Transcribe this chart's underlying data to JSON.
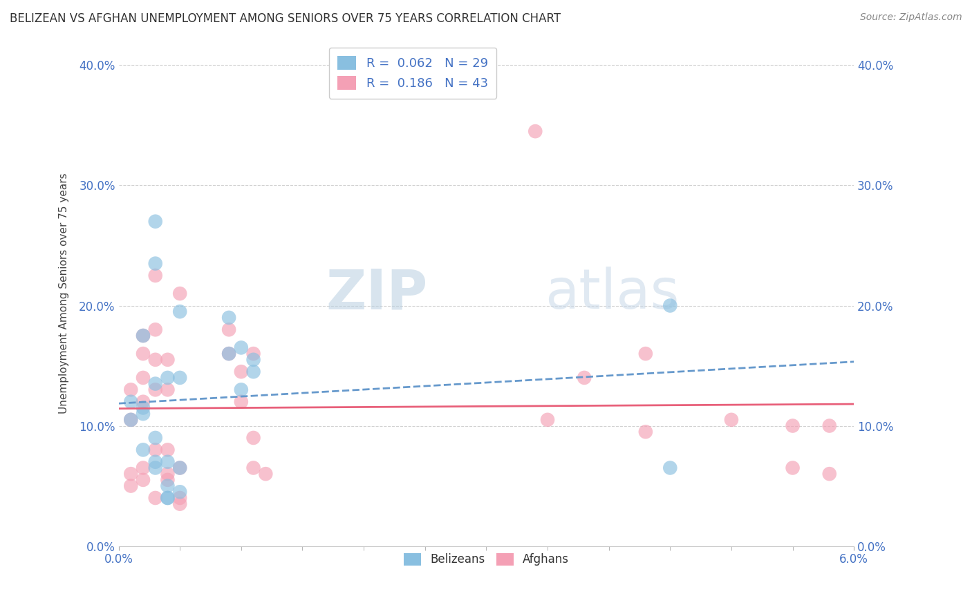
{
  "title": "BELIZEAN VS AFGHAN UNEMPLOYMENT AMONG SENIORS OVER 75 YEARS CORRELATION CHART",
  "source": "Source: ZipAtlas.com",
  "ylabel": "Unemployment Among Seniors over 75 years",
  "xlim": [
    0.0,
    0.06
  ],
  "ylim": [
    0.0,
    0.42
  ],
  "yticks": [
    0.0,
    0.1,
    0.2,
    0.3,
    0.4
  ],
  "xticks": [
    0.0,
    0.06
  ],
  "xtick_labels": [
    "0.0%",
    "6.0%"
  ],
  "ytick_labels": [
    "0.0%",
    "10.0%",
    "20.0%",
    "30.0%",
    "40.0%"
  ],
  "belizean_R": "0.062",
  "belizean_N": "29",
  "afghan_R": "0.186",
  "afghan_N": "43",
  "belizean_color": "#89bfe0",
  "afghan_color": "#f4a0b5",
  "belizean_line_color": "#6699cc",
  "afghan_line_color": "#e8607a",
  "axis_color": "#4472c4",
  "watermark_color": "#dce8f0",
  "belizean_x": [
    0.001,
    0.001,
    0.002,
    0.002,
    0.002,
    0.002,
    0.003,
    0.003,
    0.003,
    0.003,
    0.003,
    0.003,
    0.004,
    0.004,
    0.004,
    0.004,
    0.004,
    0.005,
    0.005,
    0.005,
    0.005,
    0.009,
    0.009,
    0.01,
    0.01,
    0.011,
    0.011,
    0.045,
    0.045
  ],
  "belizean_y": [
    0.105,
    0.12,
    0.115,
    0.175,
    0.11,
    0.08,
    0.235,
    0.27,
    0.135,
    0.07,
    0.09,
    0.065,
    0.14,
    0.07,
    0.04,
    0.05,
    0.04,
    0.195,
    0.14,
    0.045,
    0.065,
    0.16,
    0.19,
    0.165,
    0.13,
    0.145,
    0.155,
    0.2,
    0.065
  ],
  "afghan_x": [
    0.001,
    0.001,
    0.001,
    0.001,
    0.002,
    0.002,
    0.002,
    0.002,
    0.002,
    0.002,
    0.003,
    0.003,
    0.003,
    0.003,
    0.003,
    0.003,
    0.004,
    0.004,
    0.004,
    0.004,
    0.004,
    0.005,
    0.005,
    0.005,
    0.005,
    0.009,
    0.009,
    0.01,
    0.01,
    0.011,
    0.011,
    0.011,
    0.012,
    0.034,
    0.035,
    0.038,
    0.043,
    0.043,
    0.05,
    0.055,
    0.055,
    0.058,
    0.058
  ],
  "afghan_y": [
    0.13,
    0.105,
    0.06,
    0.05,
    0.175,
    0.16,
    0.14,
    0.12,
    0.065,
    0.055,
    0.225,
    0.18,
    0.155,
    0.13,
    0.08,
    0.04,
    0.155,
    0.13,
    0.08,
    0.06,
    0.055,
    0.21,
    0.065,
    0.04,
    0.035,
    0.16,
    0.18,
    0.145,
    0.12,
    0.16,
    0.09,
    0.065,
    0.06,
    0.345,
    0.105,
    0.14,
    0.095,
    0.16,
    0.105,
    0.1,
    0.065,
    0.1,
    0.06
  ]
}
